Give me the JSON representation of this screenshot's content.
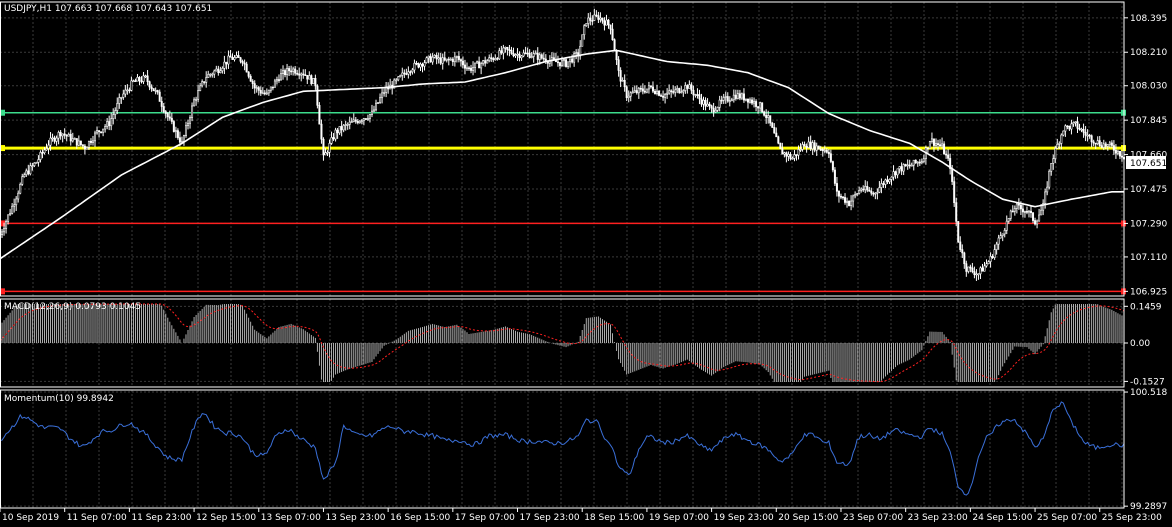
{
  "chart_data": {
    "type": "trading-chart",
    "symbol_header": "USDJPY,H1  107.663 107.668 107.643 107.651",
    "current_price_label": "107.651",
    "colors": {
      "background": "#000000",
      "grid": "#3a3a3a",
      "candle": "#ffffff",
      "ma_line": "#ffffff",
      "green_level": "#3cdc8c",
      "yellow_level": "#ffff00",
      "red_level": "#ff2020",
      "macd_hist": "#c0c0c0",
      "macd_signal": "#ff2020",
      "momentum": "#3a6fd8",
      "frame": "#ffffff"
    },
    "price_panel": {
      "ylim": [
        106.9,
        108.48
      ],
      "ticks": [
        "108.395",
        "108.210",
        "108.030",
        "107.845",
        "107.660",
        "107.475",
        "107.290",
        "107.110",
        "106.925"
      ],
      "tick_values": [
        108.395,
        108.21,
        108.03,
        107.845,
        107.66,
        107.475,
        107.29,
        107.11,
        106.925
      ],
      "levels": [
        {
          "name": "green",
          "value": 107.885
        },
        {
          "name": "yellow",
          "value": 107.695
        },
        {
          "name": "red-upper",
          "value": 107.29
        },
        {
          "name": "red-lower",
          "value": 106.925
        }
      ],
      "close_path": [
        [
          0,
          107.23
        ],
        [
          6,
          107.38
        ],
        [
          12,
          107.55
        ],
        [
          18,
          107.62
        ],
        [
          24,
          107.72
        ],
        [
          30,
          107.78
        ],
        [
          36,
          107.74
        ],
        [
          42,
          107.7
        ],
        [
          48,
          107.78
        ],
        [
          54,
          107.83
        ],
        [
          60,
          107.97
        ],
        [
          66,
          108.05
        ],
        [
          72,
          108.07
        ],
        [
          78,
          107.98
        ],
        [
          84,
          107.84
        ],
        [
          90,
          107.72
        ],
        [
          96,
          107.95
        ],
        [
          102,
          108.08
        ],
        [
          108,
          108.12
        ],
        [
          114,
          108.18
        ],
        [
          120,
          108.17
        ],
        [
          126,
          108.02
        ],
        [
          132,
          107.98
        ],
        [
          138,
          108.08
        ],
        [
          144,
          108.12
        ],
        [
          150,
          108.1
        ],
        [
          156,
          108.04
        ],
        [
          160,
          107.64
        ],
        [
          166,
          107.78
        ],
        [
          172,
          107.82
        ],
        [
          178,
          107.85
        ],
        [
          184,
          107.88
        ],
        [
          190,
          108.0
        ],
        [
          196,
          108.05
        ],
        [
          202,
          108.12
        ],
        [
          208,
          108.15
        ],
        [
          214,
          108.18
        ],
        [
          220,
          108.16
        ],
        [
          226,
          108.18
        ],
        [
          232,
          108.12
        ],
        [
          238,
          108.15
        ],
        [
          244,
          108.18
        ],
        [
          250,
          108.22
        ],
        [
          256,
          108.2
        ],
        [
          262,
          108.2
        ],
        [
          268,
          108.18
        ],
        [
          274,
          108.16
        ],
        [
          280,
          108.15
        ],
        [
          286,
          108.2
        ],
        [
          290,
          108.38
        ],
        [
          296,
          108.4
        ],
        [
          302,
          108.35
        ],
        [
          306,
          108.1
        ],
        [
          310,
          107.98
        ],
        [
          316,
          108.0
        ],
        [
          322,
          108.02
        ],
        [
          328,
          107.98
        ],
        [
          334,
          108.0
        ],
        [
          340,
          108.03
        ],
        [
          346,
          107.96
        ],
        [
          352,
          107.9
        ],
        [
          358,
          107.95
        ],
        [
          364,
          107.98
        ],
        [
          370,
          107.96
        ],
        [
          376,
          107.92
        ],
        [
          380,
          107.85
        ],
        [
          386,
          107.68
        ],
        [
          392,
          107.64
        ],
        [
          398,
          107.72
        ],
        [
          404,
          107.7
        ],
        [
          410,
          107.68
        ],
        [
          414,
          107.45
        ],
        [
          420,
          107.4
        ],
        [
          426,
          107.48
        ],
        [
          432,
          107.45
        ],
        [
          438,
          107.52
        ],
        [
          444,
          107.58
        ],
        [
          450,
          107.6
        ],
        [
          456,
          107.63
        ],
        [
          460,
          107.74
        ],
        [
          466,
          107.7
        ],
        [
          470,
          107.6
        ],
        [
          474,
          107.2
        ],
        [
          478,
          107.05
        ],
        [
          484,
          107.02
        ],
        [
          490,
          107.1
        ],
        [
          496,
          107.25
        ],
        [
          502,
          107.38
        ],
        [
          508,
          107.36
        ],
        [
          512,
          107.3
        ],
        [
          516,
          107.38
        ],
        [
          520,
          107.62
        ],
        [
          526,
          107.8
        ],
        [
          532,
          107.82
        ],
        [
          538,
          107.76
        ],
        [
          544,
          107.72
        ],
        [
          550,
          107.7
        ],
        [
          556,
          107.65
        ]
      ],
      "ma_path": [
        [
          0,
          107.1
        ],
        [
          30,
          107.32
        ],
        [
          60,
          107.55
        ],
        [
          90,
          107.72
        ],
        [
          110,
          107.86
        ],
        [
          130,
          107.94
        ],
        [
          150,
          108.0
        ],
        [
          170,
          108.01
        ],
        [
          190,
          108.02
        ],
        [
          210,
          108.04
        ],
        [
          230,
          108.05
        ],
        [
          250,
          108.1
        ],
        [
          270,
          108.16
        ],
        [
          290,
          108.2
        ],
        [
          305,
          108.22
        ],
        [
          330,
          108.16
        ],
        [
          350,
          108.14
        ],
        [
          370,
          108.1
        ],
        [
          390,
          108.02
        ],
        [
          410,
          107.88
        ],
        [
          430,
          107.79
        ],
        [
          450,
          107.72
        ],
        [
          466,
          107.62
        ],
        [
          480,
          107.52
        ],
        [
          496,
          107.42
        ],
        [
          512,
          107.38
        ],
        [
          530,
          107.42
        ],
        [
          550,
          107.46
        ],
        [
          556,
          107.46
        ]
      ]
    },
    "macd_panel": {
      "label": "MACD(12,26,9) 0.0793 0.1045",
      "ylim": [
        -0.175,
        0.175
      ],
      "ticks": [
        "0.1459",
        "0.00",
        "-0.1527"
      ],
      "tick_values": [
        0.1459,
        0.0,
        -0.1527
      ]
    },
    "momentum_panel": {
      "label": "Momentum(10) 99.8942",
      "ylim": [
        99.27,
        100.54
      ],
      "ticks": [
        "100.518",
        "99.2897"
      ],
      "tick_values": [
        100.518,
        99.2897
      ]
    },
    "x_axis": {
      "labels": [
        "10 Sep 2019",
        "11 Sep 07:00",
        "11 Sep 23:00",
        "12 Sep 15:00",
        "13 Sep 07:00",
        "13 Sep 23:00",
        "16 Sep 15:00",
        "17 Sep 07:00",
        "17 Sep 23:00",
        "18 Sep 15:00",
        "19 Sep 07:00",
        "19 Sep 23:00",
        "20 Sep 15:00",
        "23 Sep 07:00",
        "23 Sep 23:00",
        "24 Sep 15:00",
        "25 Sep 07:00",
        "25 Sep 23:00"
      ],
      "label_positions": [
        0,
        32,
        64,
        96,
        128,
        160,
        192,
        224,
        256,
        288,
        320,
        352,
        384,
        416,
        448,
        480,
        512,
        544
      ],
      "range": [
        0,
        556
      ]
    }
  }
}
